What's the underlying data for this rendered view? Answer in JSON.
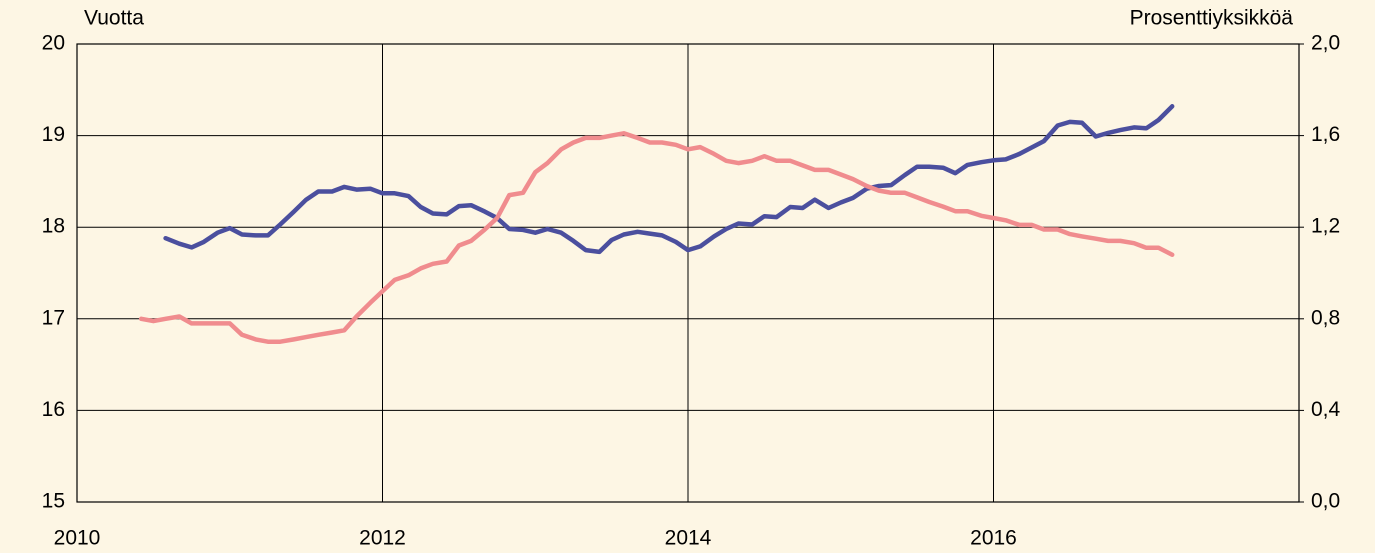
{
  "chart_data": {
    "type": "line",
    "y_label": "Vuotta",
    "y2_label": "Prosenttiyksikköä",
    "xlim": [
      2010,
      2018
    ],
    "xticks": [
      2010,
      2012,
      2014,
      2016
    ],
    "ylim": [
      15,
      20
    ],
    "yticks": [
      15,
      16,
      17,
      18,
      19,
      20
    ],
    "y2lim": [
      0,
      2
    ],
    "y2ticks": [
      {
        "value": 0,
        "label": "0,0"
      },
      {
        "value": 0.4,
        "label": "0,4"
      },
      {
        "value": 0.8,
        "label": "0,8"
      },
      {
        "value": 1.2,
        "label": "1,2"
      },
      {
        "value": 1.6,
        "label": "1,6"
      },
      {
        "value": 2,
        "label": "2,0"
      }
    ],
    "grid": true,
    "series": [
      {
        "color": "#4b4f9e",
        "x": [
          2010.58,
          2010.67,
          2010.75,
          2010.83,
          2010.92,
          2011.0,
          2011.08,
          2011.17,
          2011.25,
          2011.33,
          2011.42,
          2011.5,
          2011.58,
          2011.67,
          2011.75,
          2011.83,
          2011.92,
          2012.0,
          2012.08,
          2012.17,
          2012.25,
          2012.33,
          2012.42,
          2012.5,
          2012.58,
          2012.67,
          2012.75,
          2012.83,
          2012.92,
          2013.0,
          2013.08,
          2013.17,
          2013.25,
          2013.33,
          2013.42,
          2013.5,
          2013.58,
          2013.67,
          2013.75,
          2013.83,
          2013.92,
          2014.0,
          2014.08,
          2014.17,
          2014.25,
          2014.33,
          2014.42,
          2014.5,
          2014.58,
          2014.67,
          2014.75,
          2014.83,
          2014.92,
          2015.0,
          2015.08,
          2015.17,
          2015.25,
          2015.33,
          2015.42,
          2015.5,
          2015.58,
          2015.67,
          2015.75,
          2015.83,
          2015.92,
          2016.0,
          2016.08,
          2016.17,
          2016.25,
          2016.33,
          2016.42,
          2016.5,
          2016.58,
          2016.67,
          2016.75,
          2016.83,
          2016.92,
          2017.0,
          2017.08,
          2017.17
        ],
        "values": [
          17.88,
          17.82,
          17.78,
          17.84,
          17.94,
          17.99,
          17.92,
          17.91,
          17.91,
          18.03,
          18.17,
          18.3,
          18.39,
          18.39,
          18.44,
          18.41,
          18.42,
          18.37,
          18.37,
          18.34,
          18.22,
          18.15,
          18.14,
          18.23,
          18.24,
          18.17,
          18.1,
          17.98,
          17.97,
          17.94,
          17.98,
          17.94,
          17.85,
          17.75,
          17.73,
          17.86,
          17.92,
          17.95,
          17.93,
          17.91,
          17.84,
          17.75,
          17.79,
          17.9,
          17.98,
          18.04,
          18.03,
          18.12,
          18.11,
          18.22,
          18.21,
          18.3,
          18.21,
          18.27,
          18.32,
          18.42,
          18.45,
          18.46,
          18.57,
          18.66,
          18.66,
          18.65,
          18.59,
          18.68,
          18.71,
          18.73,
          18.74,
          18.8,
          18.87,
          18.94,
          19.11,
          19.15,
          19.14,
          18.99,
          19.03,
          19.06,
          19.09,
          19.08,
          19.17,
          19.32
        ]
      },
      {
        "color": "#f08c8e",
        "axis": "y2",
        "x": [
          2010.42,
          2010.5,
          2010.58,
          2010.67,
          2010.75,
          2010.83,
          2010.92,
          2011.0,
          2011.08,
          2011.17,
          2011.25,
          2011.33,
          2011.42,
          2011.5,
          2011.58,
          2011.67,
          2011.75,
          2011.83,
          2011.92,
          2012.0,
          2012.08,
          2012.17,
          2012.25,
          2012.33,
          2012.42,
          2012.5,
          2012.58,
          2012.67,
          2012.75,
          2012.83,
          2012.92,
          2013.0,
          2013.08,
          2013.17,
          2013.25,
          2013.33,
          2013.42,
          2013.5,
          2013.58,
          2013.67,
          2013.75,
          2013.83,
          2013.92,
          2014.0,
          2014.08,
          2014.17,
          2014.25,
          2014.33,
          2014.42,
          2014.5,
          2014.58,
          2014.67,
          2014.75,
          2014.83,
          2014.92,
          2015.0,
          2015.08,
          2015.17,
          2015.25,
          2015.33,
          2015.42,
          2015.5,
          2015.58,
          2015.67,
          2015.75,
          2015.83,
          2015.92,
          2016.0,
          2016.08,
          2016.17,
          2016.25,
          2016.33,
          2016.42,
          2016.5,
          2016.58,
          2016.67,
          2016.75,
          2016.83,
          2016.92,
          2017.0,
          2017.08,
          2017.17
        ],
        "values": [
          0.8,
          0.79,
          0.8,
          0.81,
          0.78,
          0.78,
          0.78,
          0.78,
          0.73,
          0.71,
          0.7,
          0.7,
          0.71,
          0.72,
          0.73,
          0.74,
          0.75,
          0.81,
          0.87,
          0.92,
          0.97,
          0.99,
          1.02,
          1.04,
          1.05,
          1.12,
          1.14,
          1.19,
          1.24,
          1.34,
          1.35,
          1.44,
          1.48,
          1.54,
          1.57,
          1.59,
          1.59,
          1.6,
          1.61,
          1.59,
          1.57,
          1.57,
          1.56,
          1.54,
          1.55,
          1.52,
          1.49,
          1.48,
          1.49,
          1.51,
          1.49,
          1.49,
          1.47,
          1.45,
          1.45,
          1.43,
          1.41,
          1.38,
          1.36,
          1.35,
          1.35,
          1.33,
          1.31,
          1.29,
          1.27,
          1.27,
          1.25,
          1.24,
          1.23,
          1.21,
          1.21,
          1.19,
          1.19,
          1.17,
          1.16,
          1.15,
          1.14,
          1.14,
          1.13,
          1.11,
          1.11,
          1.08
        ]
      }
    ]
  }
}
